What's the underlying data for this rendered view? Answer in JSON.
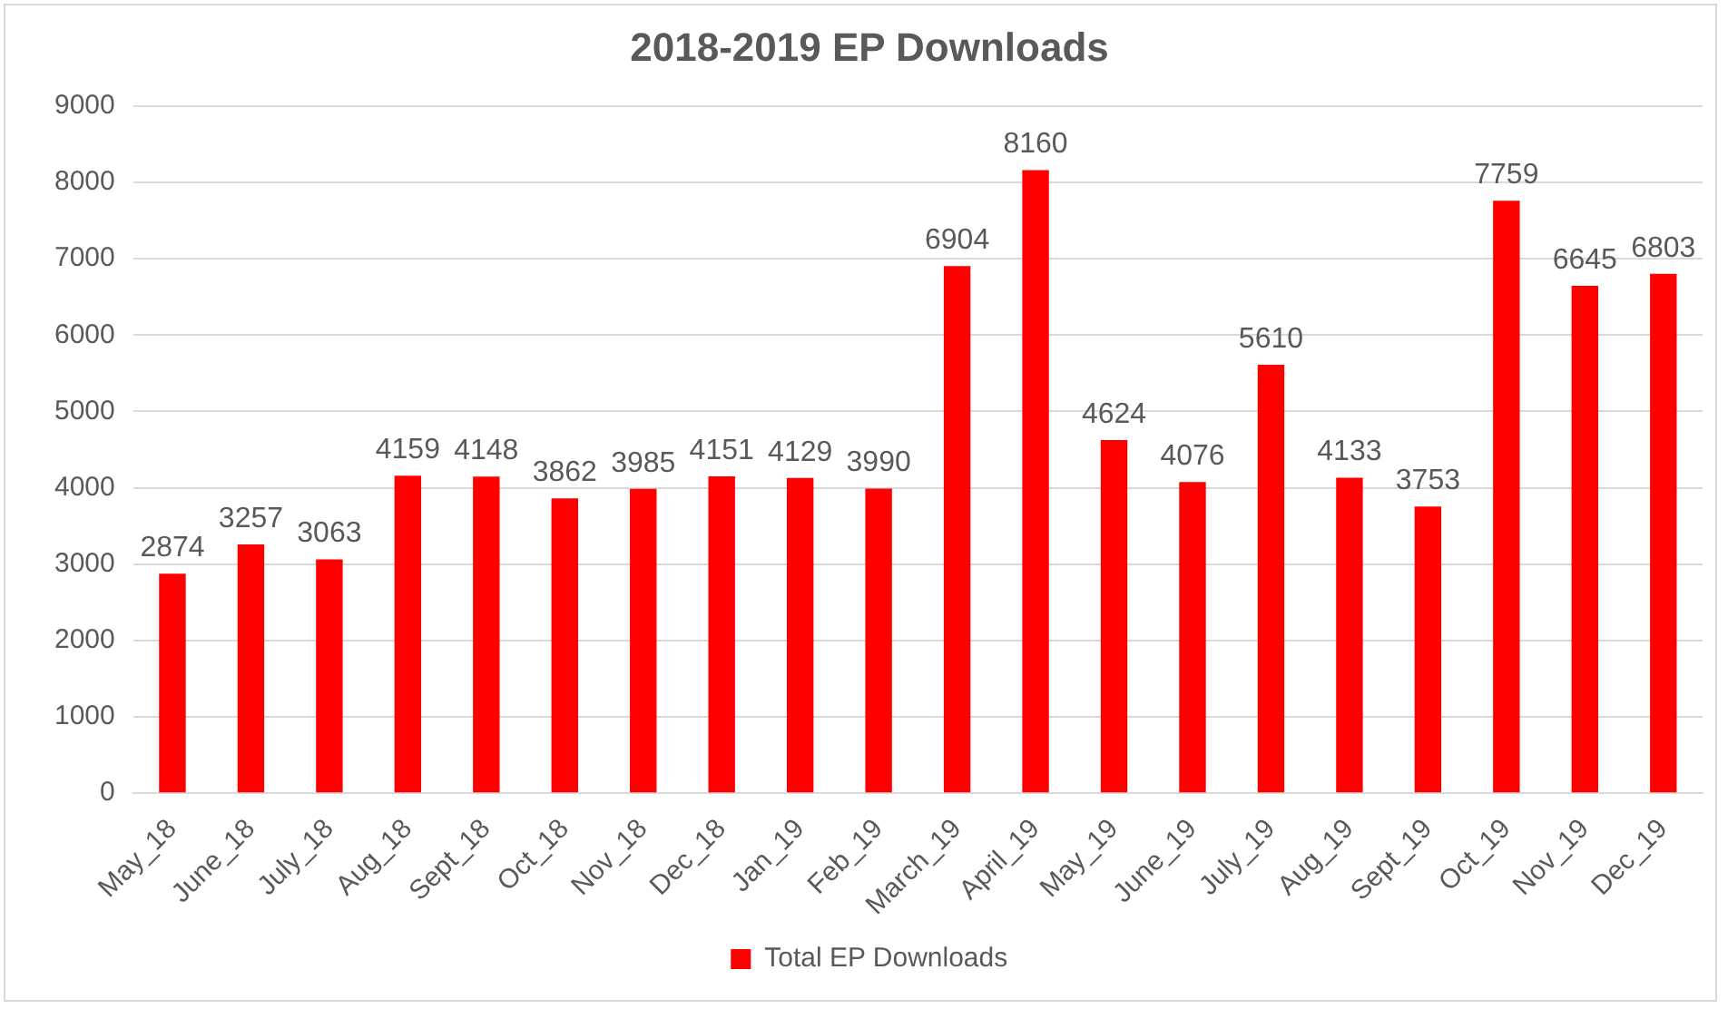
{
  "chart_data": {
    "type": "bar",
    "title": "2018-2019 EP Downloads",
    "categories": [
      "May_18",
      "June_18",
      "July_18",
      "Aug_18",
      "Sept_18",
      "Oct_18",
      "Nov_18",
      "Dec_18",
      "Jan_19",
      "Feb_19",
      "March_19",
      "April_19",
      "May_19",
      "June_19",
      "July_19",
      "Aug_19",
      "Sept_19",
      "Oct_19",
      "Nov_19",
      "Dec_19"
    ],
    "series": [
      {
        "name": "Total EP Downloads",
        "color": "#ff0000",
        "values": [
          2874,
          3257,
          3063,
          4159,
          4148,
          3862,
          3985,
          4151,
          4129,
          3990,
          6904,
          8160,
          4624,
          4076,
          5610,
          4133,
          3753,
          7759,
          6645,
          6803
        ]
      }
    ],
    "ylim": [
      0,
      9000
    ],
    "yticks": [
      0,
      1000,
      2000,
      3000,
      4000,
      5000,
      6000,
      7000,
      8000,
      9000
    ],
    "grid": "y",
    "legend": "bottom",
    "data_labels": true
  }
}
